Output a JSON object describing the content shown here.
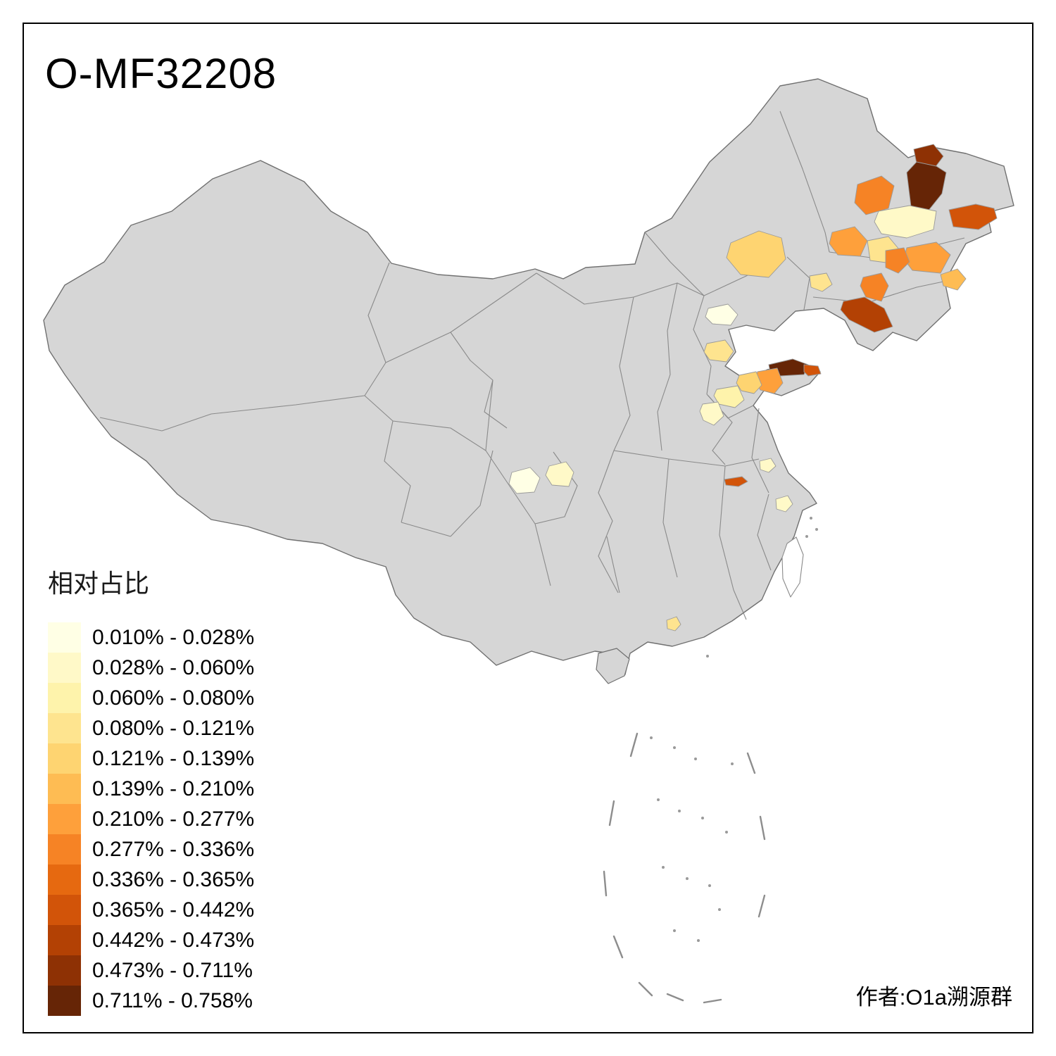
{
  "title": "O-MF32208",
  "attribution": "作者:O1a溯源群",
  "legend": {
    "title": "相对占比",
    "entries": [
      {
        "label": "0.010% - 0.028%",
        "color": "#FFFFE5"
      },
      {
        "label": "0.028% - 0.060%",
        "color": "#FFF9C8"
      },
      {
        "label": "0.060% - 0.080%",
        "color": "#FEF3AB"
      },
      {
        "label": "0.080% - 0.121%",
        "color": "#FEE48F"
      },
      {
        "label": "0.121% - 0.139%",
        "color": "#FED471"
      },
      {
        "label": "0.139% - 0.210%",
        "color": "#FEBC53"
      },
      {
        "label": "0.210% - 0.277%",
        "color": "#FEA03B"
      },
      {
        "label": "0.277% - 0.336%",
        "color": "#F68325"
      },
      {
        "label": "0.336% - 0.365%",
        "color": "#E66910"
      },
      {
        "label": "0.365% - 0.442%",
        "color": "#D25409"
      },
      {
        "label": "0.442% - 0.473%",
        "color": "#B34104"
      },
      {
        "label": "0.473% - 0.711%",
        "color": "#8E3104"
      },
      {
        "label": "0.711% - 0.758%",
        "color": "#662506"
      }
    ]
  },
  "map": {
    "base_fill": "#D6D6D6",
    "border_color": "#707070",
    "regions": [
      {
        "color": "#8E3104",
        "range": "0.473% - 0.711%"
      },
      {
        "color": "#662506",
        "range": "0.711% - 0.758%"
      },
      {
        "color": "#F68325",
        "range": "0.277% - 0.336%"
      },
      {
        "color": "#FFF9C8",
        "range": "0.028% - 0.060%"
      },
      {
        "color": "#D25409",
        "range": "0.365% - 0.442%"
      },
      {
        "color": "#FED471",
        "range": "0.121% - 0.139%"
      },
      {
        "color": "#FEA03B",
        "range": "0.210% - 0.277%"
      },
      {
        "color": "#FEE48F",
        "range": "0.080% - 0.121%"
      },
      {
        "color": "#FEA03B",
        "range": "0.210% - 0.277%"
      },
      {
        "color": "#F68325",
        "range": "0.277% - 0.336%"
      },
      {
        "color": "#FEBC53",
        "range": "0.139% - 0.210%"
      },
      {
        "color": "#F68325",
        "range": "0.277% - 0.336%"
      },
      {
        "color": "#B34104",
        "range": "0.442% - 0.473%"
      },
      {
        "color": "#FEE48F",
        "range": "0.080% - 0.121%"
      },
      {
        "color": "#FFFFE5",
        "range": "0.010% - 0.028%"
      },
      {
        "color": "#FEE48F",
        "range": "0.080% - 0.121%"
      },
      {
        "color": "#662506",
        "range": "0.711% - 0.758%"
      },
      {
        "color": "#D25409",
        "range": "0.365% - 0.442%"
      },
      {
        "color": "#FEA03B",
        "range": "0.210% - 0.277%"
      },
      {
        "color": "#FED471",
        "range": "0.121% - 0.139%"
      },
      {
        "color": "#FEF3AB",
        "range": "0.060% - 0.080%"
      },
      {
        "color": "#FFF9C8",
        "range": "0.028% - 0.060%"
      },
      {
        "color": "#FFFFE5",
        "range": "0.010% - 0.028%"
      },
      {
        "color": "#FFF9C8",
        "range": "0.028% - 0.060%"
      },
      {
        "color": "#D25409",
        "range": "0.365% - 0.442%"
      },
      {
        "color": "#FFF9C8",
        "range": "0.028% - 0.060%"
      },
      {
        "color": "#FFF9C8",
        "range": "0.028% - 0.060%"
      },
      {
        "color": "#FEE48F",
        "range": "0.080% - 0.121%"
      }
    ]
  }
}
